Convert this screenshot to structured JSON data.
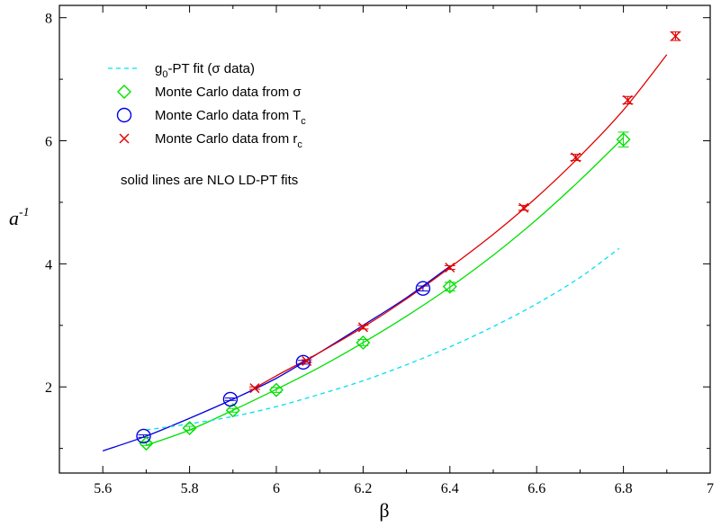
{
  "chart_data": {
    "type": "line",
    "xlabel": "β",
    "ylabel": "a",
    "ylabel_sup": "-1",
    "xlim": [
      5.5,
      7.0
    ],
    "ylim": [
      0.6,
      8.2
    ],
    "x_ticks": [
      5.6,
      5.8,
      6,
      6.2,
      6.4,
      6.6,
      6.8,
      7
    ],
    "x_tick_labels": [
      "5.6",
      "5.8",
      "6",
      "6.2",
      "6.4",
      "6.6",
      "6.8",
      "7"
    ],
    "y_ticks": [
      2,
      4,
      6,
      8
    ],
    "y_tick_labels": [
      "2",
      "4",
      "6",
      "8"
    ],
    "grid": false,
    "legend_position": "top-left",
    "legend": [
      {
        "id": "g0pt",
        "text": "g",
        "sub": "0",
        "rest": "-PT fit (σ data)",
        "marker": "dashed-line",
        "color": "#00e0f0"
      },
      {
        "id": "sigma",
        "text": "Monte Carlo data from σ",
        "sub": "",
        "rest": "",
        "marker": "diamond",
        "color": "#00e000"
      },
      {
        "id": "tc",
        "text": "Monte Carlo data from T",
        "sub": "c",
        "rest": "",
        "marker": "circle",
        "color": "#0000e0"
      },
      {
        "id": "rc",
        "text": "Monte Carlo data from r",
        "sub": "c",
        "rest": "",
        "marker": "x",
        "color": "#e00000"
      }
    ],
    "annotation": "solid lines are NLO LD-PT fits",
    "series": [
      {
        "id": "sigma",
        "marker": "diamond",
        "color": "#00e000",
        "points": [
          {
            "x": 5.7,
            "y": 1.08,
            "err": 0.03
          },
          {
            "x": 5.8,
            "y": 1.33,
            "err": 0.03
          },
          {
            "x": 5.9,
            "y": 1.62,
            "err": 0.03
          },
          {
            "x": 6.0,
            "y": 1.95,
            "err": 0.04
          },
          {
            "x": 6.2,
            "y": 2.72,
            "err": 0.05
          },
          {
            "x": 6.4,
            "y": 3.63,
            "err": 0.07
          },
          {
            "x": 6.8,
            "y": 6.02,
            "err": 0.12
          }
        ]
      },
      {
        "id": "tc",
        "marker": "circle",
        "color": "#0000e0",
        "points": [
          {
            "x": 5.694,
            "y": 1.2,
            "err": 0.02
          },
          {
            "x": 5.894,
            "y": 1.8,
            "err": 0.02
          },
          {
            "x": 6.062,
            "y": 2.4,
            "err": 0.03
          },
          {
            "x": 6.338,
            "y": 3.6,
            "err": 0.04
          }
        ]
      },
      {
        "id": "rc",
        "marker": "x",
        "color": "#e00000",
        "points": [
          {
            "x": 5.95,
            "y": 1.98,
            "err": 0.02
          },
          {
            "x": 6.07,
            "y": 2.42,
            "err": 0.02
          },
          {
            "x": 6.2,
            "y": 2.97,
            "err": 0.03
          },
          {
            "x": 6.4,
            "y": 3.94,
            "err": 0.03
          },
          {
            "x": 6.57,
            "y": 4.91,
            "err": 0.04
          },
          {
            "x": 6.69,
            "y": 5.73,
            "err": 0.05
          },
          {
            "x": 6.81,
            "y": 6.66,
            "err": 0.06
          },
          {
            "x": 6.92,
            "y": 7.7,
            "err": 0.07
          }
        ]
      }
    ],
    "fit_curves": [
      {
        "id": "fit-sigma",
        "color": "#00e000",
        "style": "solid",
        "x": [
          5.7,
          5.8,
          5.9,
          6.0,
          6.1,
          6.2,
          6.3,
          6.4,
          6.5,
          6.6,
          6.7,
          6.8
        ],
        "y": [
          1.05,
          1.3,
          1.62,
          1.96,
          2.32,
          2.72,
          3.15,
          3.62,
          4.14,
          4.72,
          5.36,
          6.05
        ]
      },
      {
        "id": "fit-tc",
        "color": "#0000e0",
        "style": "solid",
        "x": [
          5.6,
          5.7,
          5.8,
          5.9,
          6.0,
          6.1,
          6.2,
          6.3,
          6.4
        ],
        "y": [
          0.96,
          1.2,
          1.49,
          1.8,
          2.14,
          2.56,
          3.0,
          3.45,
          3.96
        ]
      },
      {
        "id": "fit-rc",
        "color": "#e00000",
        "style": "solid",
        "x": [
          5.95,
          6.0,
          6.1,
          6.2,
          6.3,
          6.4,
          6.5,
          6.6,
          6.7,
          6.8,
          6.9
        ],
        "y": [
          1.98,
          2.18,
          2.56,
          2.97,
          3.43,
          3.94,
          4.48,
          5.08,
          5.75,
          6.5,
          7.4
        ]
      },
      {
        "id": "fit-g0pt",
        "color": "#00e0f0",
        "style": "dashed",
        "x": [
          5.7,
          5.8,
          5.9,
          6.0,
          6.1,
          6.2,
          6.3,
          6.4,
          6.5,
          6.6,
          6.7,
          6.79
        ],
        "y": [
          1.3,
          1.4,
          1.52,
          1.68,
          1.88,
          2.1,
          2.36,
          2.65,
          2.98,
          3.35,
          3.78,
          4.25
        ]
      }
    ]
  }
}
